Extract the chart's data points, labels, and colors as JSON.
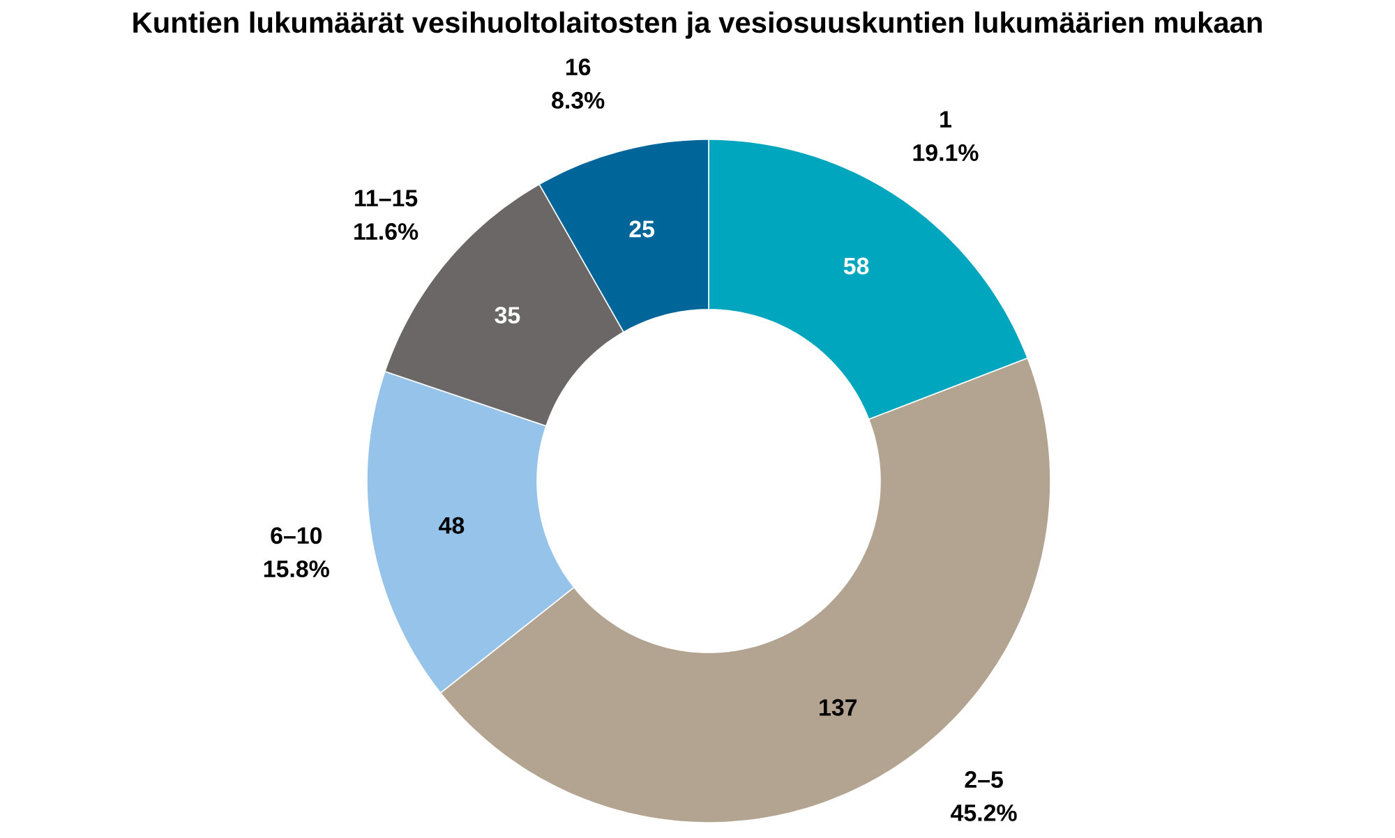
{
  "chart_data": {
    "type": "donut",
    "title": "Kuntien lukumäärät vesihuoltolaitosten ja vesiosuuskuntien lukumäärien mukaan",
    "categories": [
      "1",
      "2–5",
      "6–10",
      "11–15",
      "16"
    ],
    "values": [
      58,
      137,
      48,
      35,
      25
    ],
    "colors": [
      "#00a6be",
      "#b2a491",
      "#96c3ea",
      "#6b6767",
      "#006699"
    ],
    "annotations": [
      "19.1%",
      "45.2%",
      "15.8%",
      "11.6%",
      "8.3%"
    ],
    "data_labels": true
  }
}
